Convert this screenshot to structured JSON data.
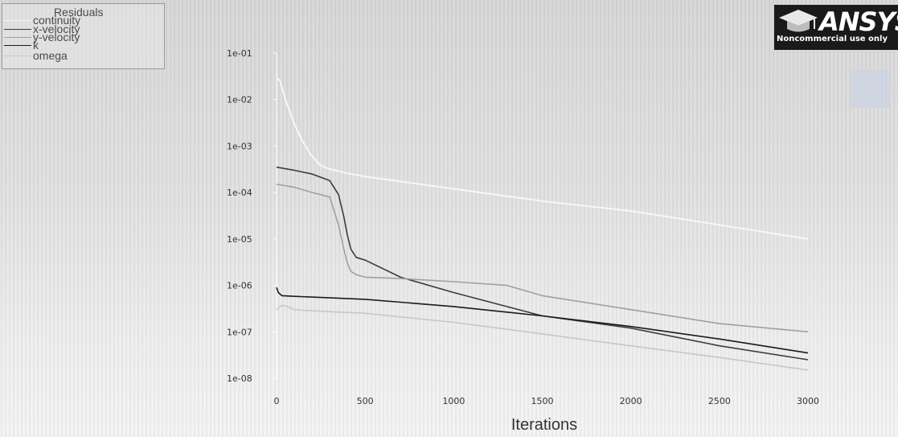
{
  "legend": {
    "title": "Residuals",
    "items": [
      {
        "label": "continuity",
        "color": "#f7f7f7"
      },
      {
        "label": "x-velocity",
        "color": "#3c3c3c"
      },
      {
        "label": "y-velocity",
        "color": "#a0a0a0"
      },
      {
        "label": "k",
        "color": "#1a1a1a"
      },
      {
        "label": "omega",
        "color": "#c7c7c7"
      }
    ]
  },
  "logo": {
    "wordmark": "ANSYS",
    "subtitle": "Noncommercial use only"
  },
  "chart_data": {
    "type": "line",
    "title": "",
    "xlabel": "Iterations",
    "ylabel": "",
    "xlim": [
      0,
      3000
    ],
    "ylim": [
      1e-08,
      0.1
    ],
    "yscale": "log",
    "xticks": [
      "0",
      "500",
      "1000",
      "1500",
      "2000",
      "2500",
      "3000"
    ],
    "yticks": [
      "1e-01",
      "1e-02",
      "1e-03",
      "1e-04",
      "1e-05",
      "1e-06",
      "1e-07",
      "1e-08"
    ],
    "grid": false,
    "legend_position": "top-left",
    "series": [
      {
        "name": "continuity",
        "color": "#f7f7f7",
        "x": [
          0,
          20,
          50,
          100,
          150,
          200,
          250,
          300,
          400,
          500,
          1000,
          1500,
          2000,
          2500,
          3000
        ],
        "y": [
          0.03,
          0.025,
          0.01,
          0.003,
          0.0012,
          0.0006,
          0.00038,
          0.00032,
          0.00026,
          0.00022,
          0.00012,
          6.5e-05,
          4e-05,
          2e-05,
          1e-05
        ]
      },
      {
        "name": "x-velocity",
        "color": "#3c3c3c",
        "x": [
          0,
          100,
          200,
          300,
          350,
          380,
          400,
          420,
          450,
          500,
          700,
          1000,
          1300,
          1500,
          2000,
          2500,
          3000
        ],
        "y": [
          0.00035,
          0.0003,
          0.00025,
          0.00018,
          9e-05,
          3e-05,
          1.2e-05,
          6e-06,
          4e-06,
          3.5e-06,
          1.5e-06,
          7e-07,
          3.5e-07,
          2.2e-07,
          1.2e-07,
          5e-08,
          2.5e-08
        ]
      },
      {
        "name": "y-velocity",
        "color": "#a0a0a0",
        "x": [
          0,
          100,
          200,
          300,
          350,
          380,
          400,
          420,
          450,
          500,
          700,
          1000,
          1300,
          1500,
          2000,
          2500,
          3000
        ],
        "y": [
          0.00015,
          0.00013,
          0.0001,
          8e-05,
          2e-05,
          6e-06,
          3e-06,
          2e-06,
          1.7e-06,
          1.5e-06,
          1.4e-06,
          1.2e-06,
          1e-06,
          6e-07,
          3e-07,
          1.5e-07,
          1e-07
        ]
      },
      {
        "name": "k",
        "color": "#1a1a1a",
        "x": [
          0,
          10,
          30,
          100,
          500,
          1000,
          1500,
          2000,
          2500,
          3000
        ],
        "y": [
          9e-07,
          7e-07,
          6e-07,
          5.8e-07,
          5e-07,
          3.5e-07,
          2.2e-07,
          1.3e-07,
          7e-08,
          3.5e-08
        ]
      },
      {
        "name": "omega",
        "color": "#c7c7c7",
        "x": [
          0,
          30,
          60,
          100,
          150,
          500,
          1000,
          1500,
          2000,
          2500,
          3000
        ],
        "y": [
          3e-07,
          3.7e-07,
          3.5e-07,
          3e-07,
          2.9e-07,
          2.5e-07,
          1.6e-07,
          9e-08,
          5e-08,
          2.8e-08,
          1.5e-08
        ]
      }
    ]
  }
}
